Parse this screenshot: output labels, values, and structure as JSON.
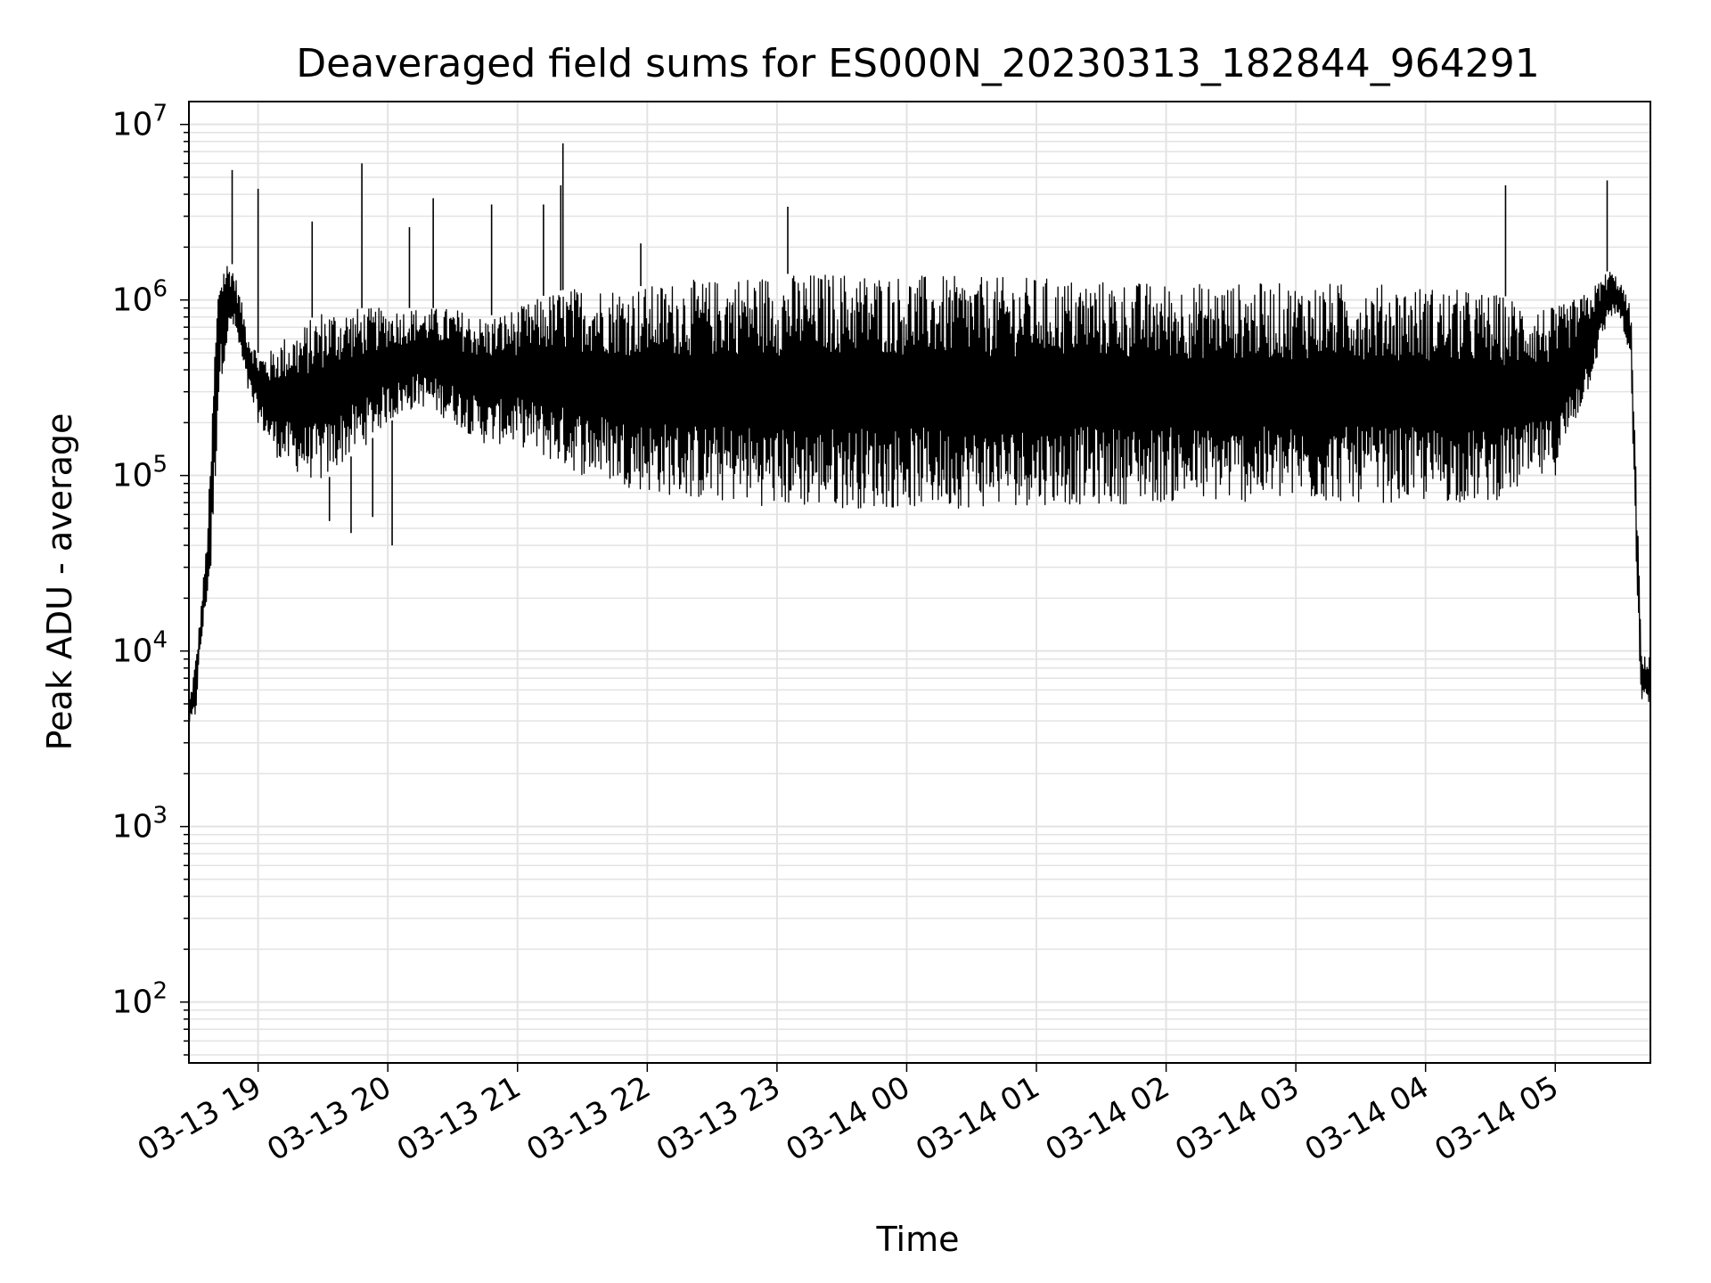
{
  "chart_data": {
    "type": "line",
    "title": "Deaveraged field sums for ES000N_20230313_182844_964291",
    "xlabel": "Time",
    "ylabel": "Peak ADU - average",
    "yscale": "log",
    "xlim": [
      "2023-03-13 18:28",
      "2023-03-14 05:44"
    ],
    "ylim": [
      45,
      13500000
    ],
    "grid": true,
    "x_ticks": [
      {
        "t": "2023-03-13 19:00",
        "label": "03-13 19"
      },
      {
        "t": "2023-03-13 20:00",
        "label": "03-13 20"
      },
      {
        "t": "2023-03-13 21:00",
        "label": "03-13 21"
      },
      {
        "t": "2023-03-13 22:00",
        "label": "03-13 22"
      },
      {
        "t": "2023-03-13 23:00",
        "label": "03-13 23"
      },
      {
        "t": "2023-03-14 00:00",
        "label": "03-14 00"
      },
      {
        "t": "2023-03-14 01:00",
        "label": "03-14 01"
      },
      {
        "t": "2023-03-14 02:00",
        "label": "03-14 02"
      },
      {
        "t": "2023-03-14 03:00",
        "label": "03-14 03"
      },
      {
        "t": "2023-03-14 04:00",
        "label": "03-14 04"
      },
      {
        "t": "2023-03-14 05:00",
        "label": "03-14 05"
      }
    ],
    "y_ticks": [
      {
        "v": 100,
        "base": "10",
        "exp": "2"
      },
      {
        "v": 1000,
        "base": "10",
        "exp": "3"
      },
      {
        "v": 10000,
        "base": "10",
        "exp": "4"
      },
      {
        "v": 100000,
        "base": "10",
        "exp": "5"
      },
      {
        "v": 1000000,
        "base": "10",
        "exp": "6"
      },
      {
        "v": 10000000,
        "base": "10",
        "exp": "7"
      }
    ],
    "series": [
      {
        "color": "#000000",
        "x": [
          "2023-03-13 18:28",
          "2023-03-13 18:31",
          "2023-03-13 18:33",
          "2023-03-13 18:36",
          "2023-03-13 18:38",
          "2023-03-13 18:40",
          "2023-03-13 18:42",
          "2023-03-13 18:45",
          "2023-03-13 18:48",
          "2023-03-13 18:50",
          "2023-03-13 18:53",
          "2023-03-13 18:55",
          "2023-03-13 19:00",
          "2023-03-13 19:05",
          "2023-03-13 19:10",
          "2023-03-13 19:20",
          "2023-03-13 19:30",
          "2023-03-13 19:40",
          "2023-03-13 19:50",
          "2023-03-13 20:00",
          "2023-03-13 20:15",
          "2023-03-13 20:30",
          "2023-03-13 20:45",
          "2023-03-13 21:00",
          "2023-03-13 21:15",
          "2023-03-13 21:30",
          "2023-03-13 21:45",
          "2023-03-13 22:00",
          "2023-03-13 22:15",
          "2023-03-13 22:30",
          "2023-03-13 22:45",
          "2023-03-13 23:00",
          "2023-03-13 23:30",
          "2023-03-14 00:00",
          "2023-03-14 00:30",
          "2023-03-14 01:00",
          "2023-03-14 01:30",
          "2023-03-14 02:00",
          "2023-03-14 02:30",
          "2023-03-14 03:00",
          "2023-03-14 03:30",
          "2023-03-14 04:00",
          "2023-03-14 04:30",
          "2023-03-14 05:00",
          "2023-03-14 05:15",
          "2023-03-14 05:25",
          "2023-03-14 05:30",
          "2023-03-14 05:35",
          "2023-03-14 05:38",
          "2023-03-14 05:40",
          "2023-03-14 05:44"
        ],
        "y_low": [
          3800,
          4000,
          9000,
          18000,
          25000,
          80000,
          300000,
          500000,
          700000,
          600000,
          400000,
          300000,
          200000,
          150000,
          120000,
          100000,
          90000,
          120000,
          150000,
          200000,
          250000,
          200000,
          150000,
          150000,
          120000,
          100000,
          90000,
          80000,
          75000,
          70000,
          70000,
          65000,
          65000,
          65000,
          65000,
          68000,
          68000,
          70000,
          70000,
          70000,
          70000,
          70000,
          70000,
          100000,
          300000,
          800000,
          800000,
          400000,
          15000,
          5000,
          5000
        ],
        "y_high": [
          5000,
          9000,
          15000,
          40000,
          120000,
          600000,
          1500000,
          1700000,
          1600000,
          1300000,
          900000,
          700000,
          500000,
          500000,
          600000,
          700000,
          900000,
          900000,
          900000,
          900000,
          900000,
          900000,
          800000,
          900000,
          1100000,
          1200000,
          1200000,
          1200000,
          1300000,
          1300000,
          1400000,
          1400000,
          1450000,
          1400000,
          1350000,
          1350000,
          1300000,
          1250000,
          1250000,
          1250000,
          1250000,
          1200000,
          1100000,
          900000,
          1100000,
          1500000,
          1300000,
          900000,
          60000,
          9000,
          10000
        ],
        "spikes": [
          {
            "x": "2023-03-13 18:48",
            "y": 5500000
          },
          {
            "x": "2023-03-13 19:00",
            "y": 4300000
          },
          {
            "x": "2023-03-13 19:25",
            "y": 2800000
          },
          {
            "x": "2023-03-13 19:48",
            "y": 6000000
          },
          {
            "x": "2023-03-13 20:10",
            "y": 2600000
          },
          {
            "x": "2023-03-13 20:21",
            "y": 3800000
          },
          {
            "x": "2023-03-13 20:48",
            "y": 3500000
          },
          {
            "x": "2023-03-13 21:12",
            "y": 3500000
          },
          {
            "x": "2023-03-13 21:20",
            "y": 4500000
          },
          {
            "x": "2023-03-13 21:21",
            "y": 7800000
          },
          {
            "x": "2023-03-13 21:57",
            "y": 2100000
          },
          {
            "x": "2023-03-13 23:05",
            "y": 3400000
          },
          {
            "x": "2023-03-14 04:37",
            "y": 4500000
          },
          {
            "x": "2023-03-14 05:24",
            "y": 4800000
          }
        ],
        "dips": [
          {
            "x": "2023-03-13 20:02",
            "y": 40000
          },
          {
            "x": "2023-03-13 19:43",
            "y": 47000
          },
          {
            "x": "2023-03-13 19:53",
            "y": 58000
          },
          {
            "x": "2023-03-13 19:33",
            "y": 55000
          }
        ]
      }
    ]
  }
}
